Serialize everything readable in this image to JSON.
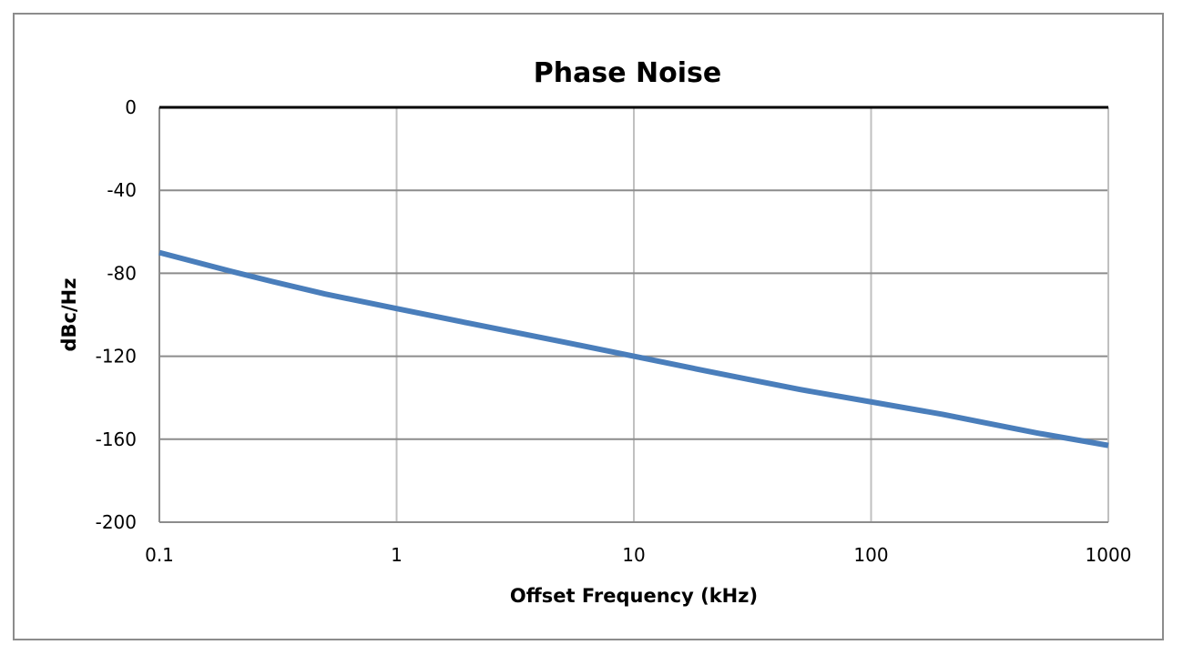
{
  "chart_data": {
    "type": "line",
    "title": "Phase Noise",
    "xlabel": "Offset Frequency (kHz)",
    "ylabel": "dBc/Hz",
    "x_scale": "log",
    "xlim": [
      0.1,
      1000
    ],
    "ylim": [
      -200,
      0
    ],
    "x_ticks": [
      "0.1",
      "1",
      "10",
      "100",
      "1000"
    ],
    "y_ticks": [
      "0",
      "-40",
      "-80",
      "-120",
      "-160",
      "-200"
    ],
    "grid": true,
    "legend": "none",
    "series": [
      {
        "color": "#4a7ebb",
        "x": [
          0.1,
          0.2,
          0.3,
          0.5,
          1,
          2,
          3,
          5,
          10,
          20,
          30,
          50,
          100,
          200,
          300,
          500,
          1000
        ],
        "y": [
          -70,
          -79,
          -84,
          -90,
          -97,
          -104,
          -108,
          -113,
          -120,
          -127,
          -131,
          -136,
          -142,
          -148,
          -152,
          -157,
          -163
        ]
      }
    ]
  }
}
